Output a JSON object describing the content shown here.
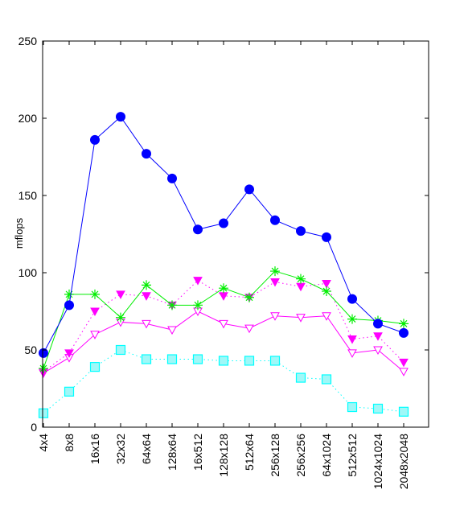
{
  "chart_data": {
    "type": "line",
    "title": "",
    "xlabel": "",
    "ylabel": "mflops",
    "ylim": [
      0,
      250
    ],
    "yticks": [
      0,
      50,
      100,
      150,
      200,
      250
    ],
    "grid": false,
    "legend": "none",
    "categories": [
      "4x4",
      "8x8",
      "16x16",
      "32x32",
      "64x64",
      "128x64",
      "16x512",
      "128x128",
      "512x64",
      "256x128",
      "256x256",
      "64x1024",
      "512x512",
      "1024x1024",
      "2048x2048"
    ],
    "series": [
      {
        "color": "#0000ff",
        "marker": "filled-circle",
        "line": "solid",
        "values": [
          48,
          79,
          186,
          201,
          177,
          161,
          128,
          132,
          154,
          134,
          127,
          123,
          83,
          67,
          61
        ]
      },
      {
        "color": "#00ee00",
        "marker": "star",
        "line": "solid",
        "values": [
          38,
          86,
          86,
          71,
          92,
          79,
          79,
          90,
          84,
          101,
          96,
          88,
          70,
          69,
          67
        ]
      },
      {
        "color": "#ff00ff",
        "marker": "filled-triangle-down",
        "line": "dotted",
        "values": [
          36,
          48,
          75,
          86,
          85,
          79,
          95,
          85,
          84,
          94,
          91,
          93,
          57,
          59,
          42
        ]
      },
      {
        "color": "#ff00ff",
        "marker": "open-triangle-down",
        "line": "solid",
        "values": [
          35,
          45,
          60,
          68,
          67,
          63,
          75,
          67,
          64,
          72,
          71,
          72,
          48,
          50,
          36
        ]
      },
      {
        "color": "#00ffff",
        "marker": "open-square",
        "line": "dotted",
        "values": [
          9,
          23,
          39,
          50,
          44,
          44,
          44,
          43,
          43,
          43,
          32,
          31,
          13,
          12,
          10
        ]
      }
    ]
  }
}
